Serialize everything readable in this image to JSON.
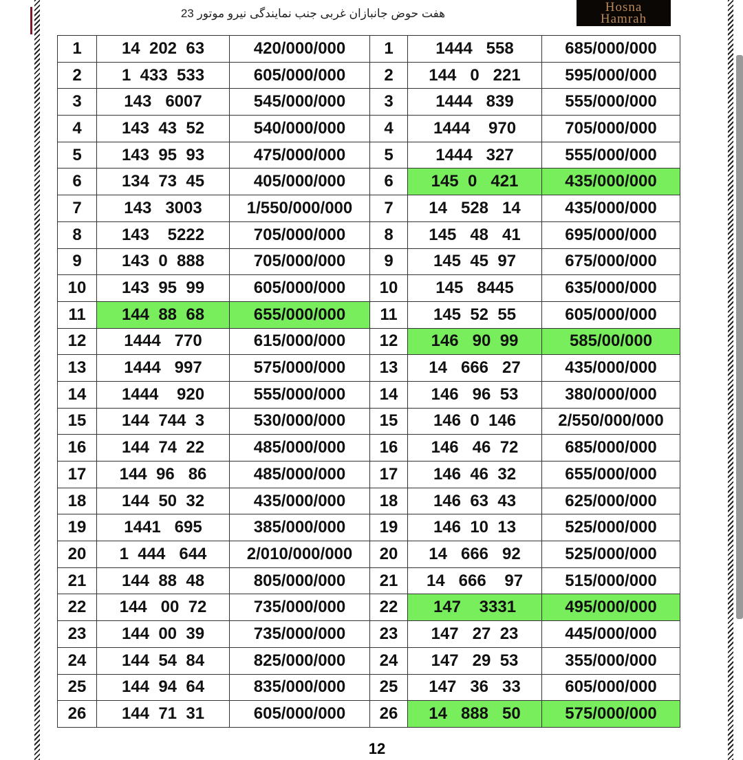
{
  "header": {
    "title": "هفت حوض جانبازان غربی جنب نمایندگی نیرو موتور 23",
    "logo": "Hosna Hamrah"
  },
  "page_number": "12",
  "highlight_color": "#78ee5c",
  "left": [
    [
      "1",
      "14  202  63",
      "420/000/000",
      false
    ],
    [
      "2",
      "1  433  533",
      "605/000/000",
      false
    ],
    [
      "3",
      "143   6007",
      "545/000/000",
      false
    ],
    [
      "4",
      "143  43  52",
      "540/000/000",
      false
    ],
    [
      "5",
      "143  95  93",
      "475/000/000",
      false
    ],
    [
      "6",
      "134  73  45",
      "405/000/000",
      false
    ],
    [
      "7",
      "143   3003",
      "1/550/000/000",
      false
    ],
    [
      "8",
      "143    5222",
      "705/000/000",
      false
    ],
    [
      "9",
      "143  0  888",
      "705/000/000",
      false
    ],
    [
      "10",
      "143  95  99",
      "605/000/000",
      false
    ],
    [
      "11",
      "144  88  68",
      "655/000/000",
      true
    ],
    [
      "12",
      "1444   770",
      "615/000/000",
      false
    ],
    [
      "13",
      "1444   997",
      "575/000/000",
      false
    ],
    [
      "14",
      "1444    920",
      "555/000/000",
      false
    ],
    [
      "15",
      "144  744  3",
      "530/000/000",
      false
    ],
    [
      "16",
      "144  74  22",
      "485/000/000",
      false
    ],
    [
      "17",
      "144  96   86",
      "485/000/000",
      false
    ],
    [
      "18",
      "144  50  32",
      "435/000/000",
      false
    ],
    [
      "19",
      "1441   695",
      "385/000/000",
      false
    ],
    [
      "20",
      "1  444   644",
      "2/010/000/000",
      false
    ],
    [
      "21",
      "144  88  48",
      "805/000/000",
      false
    ],
    [
      "22",
      "144   00  72",
      "735/000/000",
      false
    ],
    [
      "23",
      "144  00  39",
      "735/000/000",
      false
    ],
    [
      "24",
      "144  54  84",
      "825/000/000",
      false
    ],
    [
      "25",
      "144  94  64",
      "835/000/000",
      false
    ],
    [
      "26",
      "144  71  31",
      "605/000/000",
      false
    ]
  ],
  "right": [
    [
      "1",
      "1444   558",
      "685/000/000",
      false
    ],
    [
      "2",
      "144   0   221",
      "595/000/000",
      false
    ],
    [
      "3",
      "1444   839",
      "555/000/000",
      false
    ],
    [
      "4",
      "1444    970",
      "705/000/000",
      false
    ],
    [
      "5",
      "1444   327",
      "555/000/000",
      false
    ],
    [
      "6",
      "145  0   421",
      "435/000/000",
      true
    ],
    [
      "7",
      "14   528   14",
      "435/000/000",
      false
    ],
    [
      "8",
      "145   48   41",
      "695/000/000",
      false
    ],
    [
      "9",
      "145  45  97",
      "675/000/000",
      false
    ],
    [
      "10",
      "145   8445",
      "635/000/000",
      false
    ],
    [
      "11",
      "145  52  55",
      "605/000/000",
      false
    ],
    [
      "12",
      "146   90  99",
      "585/00/000",
      true
    ],
    [
      "13",
      "14   666   27",
      "435/000/000",
      false
    ],
    [
      "14",
      "146   96  53",
      "380/000/000",
      false
    ],
    [
      "15",
      "146  0  146",
      "2/550/000/000",
      false
    ],
    [
      "16",
      "146   46  72",
      "685/000/000",
      false
    ],
    [
      "17",
      "146  46  32",
      "655/000/000",
      false
    ],
    [
      "18",
      "146  63  43",
      "625/000/000",
      false
    ],
    [
      "19",
      "146  10  13",
      "525/000/000",
      false
    ],
    [
      "20",
      "14   666   92",
      "525/000/000",
      false
    ],
    [
      "21",
      "14   666    97",
      "515/000/000",
      false
    ],
    [
      "22",
      "147    3331",
      "495/000/000",
      true
    ],
    [
      "23",
      "147   27  23",
      "445/000/000",
      false
    ],
    [
      "24",
      "147   29  53",
      "355/000/000",
      false
    ],
    [
      "25",
      "147   36   33",
      "605/000/000",
      false
    ],
    [
      "26",
      "14   888   50",
      "575/000/000",
      true
    ]
  ]
}
